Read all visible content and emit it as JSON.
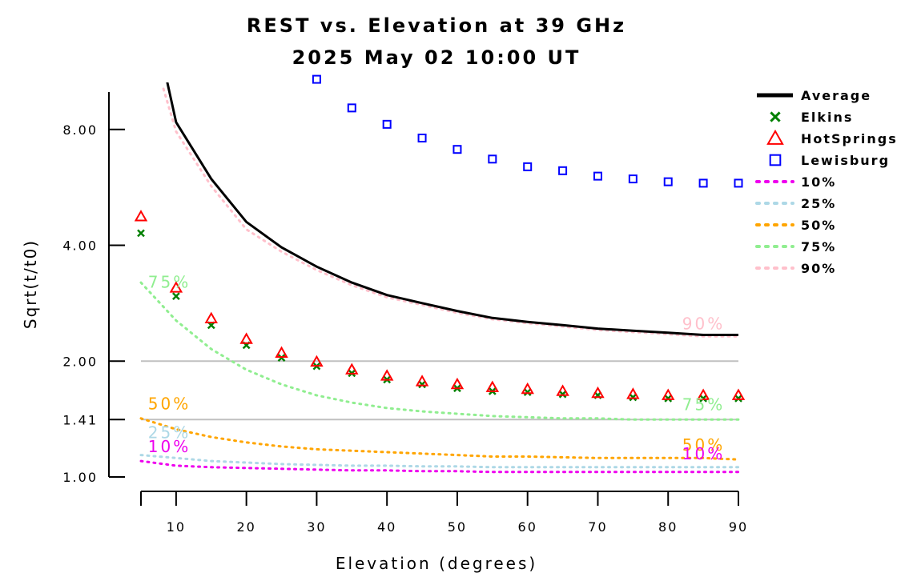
{
  "chart_data": {
    "type": "line",
    "title": "REST vs. Elevation at 39 GHz",
    "subtitle": "2025 May 02 10:00 UT",
    "xlabel": "Elevation (degrees)",
    "ylabel": "Sqrt(t/t0)",
    "y_scale": "log",
    "xlim": [
      5,
      90
    ],
    "ylim": [
      1.0,
      10.6
    ],
    "x_ticks": [
      10,
      20,
      30,
      40,
      50,
      60,
      70,
      80,
      90
    ],
    "x_tick_labels": [
      "10",
      "20",
      "30",
      "40",
      "50",
      "60",
      "70",
      "80",
      "90"
    ],
    "y_ticks": [
      1.0,
      1.41,
      2.0,
      4.0,
      8.0
    ],
    "y_tick_labels": [
      "1.00",
      "1.41",
      "2.00",
      "4.00",
      "8.00"
    ],
    "reference_lines": [
      1.41,
      2.0
    ],
    "legend_position": "right",
    "x": [
      5,
      10,
      15,
      20,
      25,
      30,
      35,
      40,
      45,
      50,
      55,
      60,
      65,
      70,
      75,
      80,
      85,
      90
    ],
    "series": [
      {
        "name": "Average",
        "style": "line",
        "color": "#000000",
        "values": [
          null,
          8.35,
          5.95,
          4.6,
          3.95,
          3.52,
          3.2,
          2.97,
          2.83,
          2.7,
          2.59,
          2.53,
          2.48,
          2.43,
          2.4,
          2.37,
          2.34,
          2.34
        ]
      },
      {
        "name": "Elkins",
        "style": "marker",
        "marker": "x",
        "color": "#008000",
        "values": [
          4.3,
          2.95,
          2.48,
          2.2,
          2.04,
          1.94,
          1.86,
          1.79,
          1.74,
          1.7,
          1.67,
          1.66,
          1.64,
          1.63,
          1.61,
          1.6,
          1.6,
          1.6
        ]
      },
      {
        "name": "HotSprings",
        "style": "marker",
        "marker": "triangle",
        "color": "#ff0000",
        "values": [
          4.75,
          3.1,
          2.58,
          2.28,
          2.1,
          1.99,
          1.9,
          1.83,
          1.77,
          1.74,
          1.71,
          1.69,
          1.67,
          1.65,
          1.64,
          1.63,
          1.63,
          1.63
        ]
      },
      {
        "name": "Lewisburg",
        "style": "marker",
        "marker": "square",
        "color": "#0000ff",
        "values": [
          null,
          null,
          null,
          null,
          null,
          10.8,
          9.1,
          8.25,
          7.6,
          7.1,
          6.7,
          6.4,
          6.25,
          6.05,
          5.95,
          5.85,
          5.8,
          5.8
        ]
      },
      {
        "name": "10%",
        "style": "dotted",
        "color": "#ee00ee",
        "values": [
          1.1,
          1.07,
          1.06,
          1.055,
          1.05,
          1.045,
          1.04,
          1.04,
          1.035,
          1.035,
          1.03,
          1.03,
          1.03,
          1.03,
          1.03,
          1.03,
          1.03,
          1.03
        ]
      },
      {
        "name": "25%",
        "style": "dotted",
        "color": "#add8e6",
        "values": [
          1.14,
          1.12,
          1.1,
          1.09,
          1.08,
          1.075,
          1.07,
          1.07,
          1.065,
          1.065,
          1.06,
          1.06,
          1.06,
          1.06,
          1.06,
          1.06,
          1.06,
          1.06
        ]
      },
      {
        "name": "50%",
        "style": "dotted",
        "color": "#ffa500",
        "values": [
          1.42,
          1.33,
          1.27,
          1.23,
          1.2,
          1.18,
          1.17,
          1.16,
          1.15,
          1.14,
          1.13,
          1.13,
          1.125,
          1.12,
          1.12,
          1.12,
          1.12,
          1.11
        ]
      },
      {
        "name": "75%",
        "style": "dotted",
        "color": "#90ee90",
        "values": [
          3.2,
          2.55,
          2.15,
          1.9,
          1.74,
          1.63,
          1.56,
          1.51,
          1.48,
          1.46,
          1.44,
          1.43,
          1.42,
          1.42,
          1.41,
          1.41,
          1.41,
          1.41
        ]
      },
      {
        "name": "90%",
        "style": "dotted",
        "color": "#ffc0cb",
        "values": [
          null,
          7.9,
          5.7,
          4.4,
          3.85,
          3.45,
          3.15,
          2.93,
          2.8,
          2.67,
          2.57,
          2.51,
          2.46,
          2.41,
          2.38,
          2.35,
          2.32,
          2.32
        ]
      }
    ],
    "curve_labels": [
      {
        "text": "75%",
        "series": "75%",
        "x": 6,
        "y": 3.1
      },
      {
        "text": "50%",
        "series": "50%",
        "x": 6,
        "y": 1.5
      },
      {
        "text": "25%",
        "series": "25%",
        "x": 6,
        "y": 1.26
      },
      {
        "text": "10%",
        "series": "10%",
        "x": 6,
        "y": 1.16
      },
      {
        "text": "90%",
        "series": "90%",
        "x": 82,
        "y": 2.42
      },
      {
        "text": "75%",
        "series": "75%",
        "x": 82,
        "y": 1.49
      },
      {
        "text": "50%",
        "series": "50%",
        "x": 82,
        "y": 1.17
      },
      {
        "text": "10%",
        "series": "10%",
        "x": 82,
        "y": 1.11
      }
    ]
  }
}
